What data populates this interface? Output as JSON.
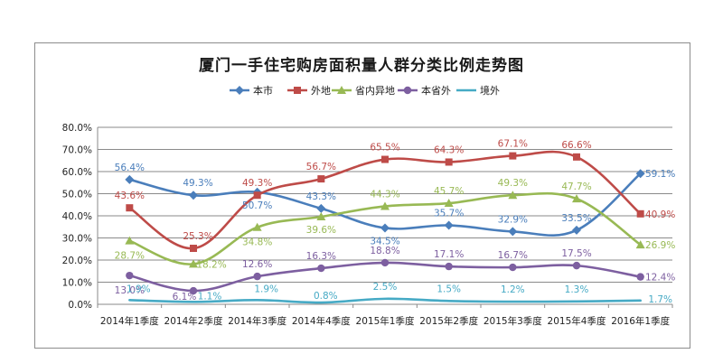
{
  "chart_data": {
    "type": "line",
    "title": "厦门一手住宅购房面积量人群分类比例走势图",
    "categories": [
      "2014年1季度",
      "2014年2季度",
      "2014年3季度",
      "2014年4季度",
      "2015年1季度",
      "2015年2季度",
      "2015年3季度",
      "2015年4季度",
      "2016年1季度"
    ],
    "ylim": [
      0,
      80
    ],
    "yticks": [
      "0.0%",
      "10.0%",
      "20.0%",
      "30.0%",
      "40.0%",
      "50.0%",
      "60.0%",
      "70.0%",
      "80.0%"
    ],
    "grid": true,
    "legend_position": "top",
    "series": [
      {
        "name": "本市",
        "color": "#4a7ebb",
        "marker": "diamond",
        "values": [
          56.4,
          49.3,
          50.7,
          43.3,
          34.5,
          35.7,
          32.9,
          33.5,
          59.1
        ],
        "labels": [
          "56.4%",
          "49.3%",
          "50.7%",
          "43.3%",
          "34.5%",
          "35.7%",
          "32.9%",
          "33.5%",
          "59.1%"
        ]
      },
      {
        "name": "外地",
        "color": "#be4b48",
        "marker": "square",
        "values": [
          43.6,
          25.3,
          49.3,
          56.7,
          65.5,
          64.3,
          67.1,
          66.6,
          40.9
        ],
        "labels": [
          "43.6%",
          "25.3%",
          "49.3%",
          "56.7%",
          "65.5%",
          "64.3%",
          "67.1%",
          "66.6%",
          "40.9%"
        ]
      },
      {
        "name": "省内异地",
        "color": "#98b954",
        "marker": "triangle",
        "values": [
          28.7,
          18.2,
          34.8,
          39.6,
          44.3,
          45.7,
          49.3,
          47.7,
          26.9
        ],
        "labels": [
          "28.7%",
          "18.2%",
          "34.8%",
          "39.6%",
          "44.3%",
          "45.7%",
          "49.3%",
          "47.7%",
          "26.9%"
        ]
      },
      {
        "name": "本省外",
        "color": "#7d5fa0",
        "marker": "circle",
        "values": [
          13.0,
          6.1,
          12.6,
          16.3,
          18.8,
          17.1,
          16.7,
          17.5,
          12.4
        ],
        "labels": [
          "13.0%",
          "6.1%",
          "12.6%",
          "16.3%",
          "18.8%",
          "17.1%",
          "16.7%",
          "17.5%",
          "12.4%"
        ]
      },
      {
        "name": "境外",
        "color": "#46aac5",
        "marker": "none",
        "values": [
          1.9,
          1.1,
          1.9,
          0.8,
          2.5,
          1.5,
          1.2,
          1.3,
          1.7
        ],
        "labels": [
          "1.9%",
          "1.1%",
          "1.9%",
          "0.8%",
          "2.5%",
          "1.5%",
          "1.2%",
          "1.3%",
          "1.7%"
        ]
      }
    ]
  }
}
